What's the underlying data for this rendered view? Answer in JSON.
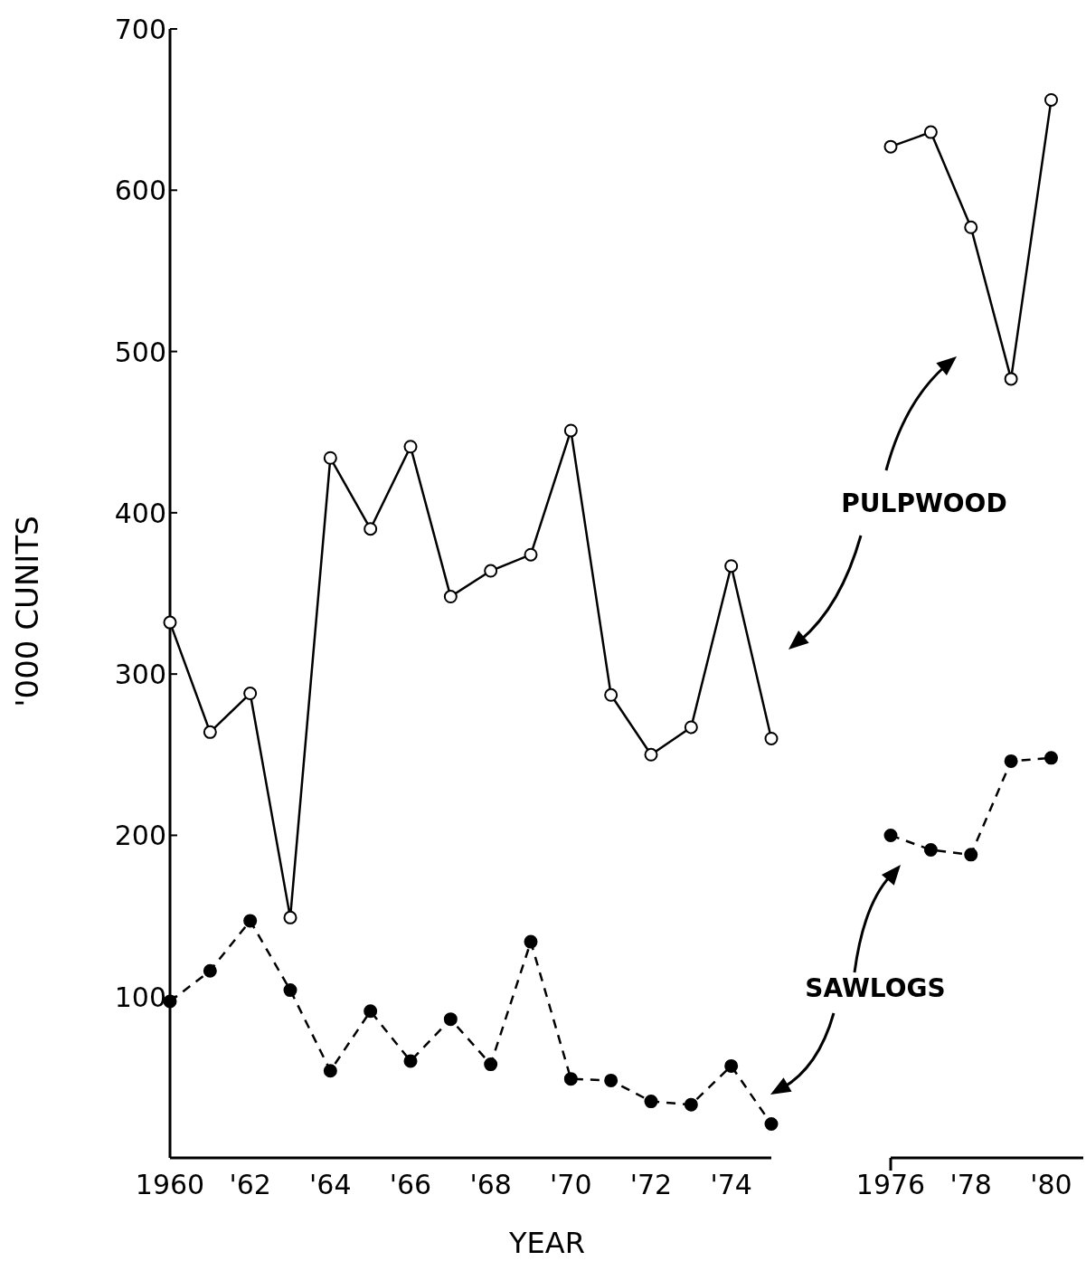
{
  "chart_data": [
    {
      "type": "line",
      "xlabel": "YEAR",
      "ylabel": "'000 CUNITS",
      "x": [
        1960,
        1961,
        1962,
        1963,
        1964,
        1965,
        1966,
        1967,
        1968,
        1969,
        1970,
        1971,
        1972,
        1973,
        1974,
        1975
      ],
      "xlim": [
        1960,
        1975
      ],
      "xticks": [
        {
          "value": 1960,
          "label": "1960"
        },
        {
          "value": 1962,
          "label": "'62"
        },
        {
          "value": 1964,
          "label": "'64"
        },
        {
          "value": 1966,
          "label": "'66"
        },
        {
          "value": 1968,
          "label": "'68"
        },
        {
          "value": 1970,
          "label": "'70"
        },
        {
          "value": 1972,
          "label": "'72"
        },
        {
          "value": 1974,
          "label": "'74"
        }
      ],
      "ylim": [
        0,
        700
      ],
      "yticks": [
        100,
        200,
        300,
        400,
        500,
        600,
        700
      ],
      "grid": false,
      "series": [
        {
          "name": "PULPWOOD",
          "color": "#000000",
          "marker": "circle",
          "line_style": "solid",
          "values": [
            332,
            264,
            288,
            149,
            434,
            390,
            441,
            348,
            364,
            374,
            451,
            287,
            250,
            267,
            367,
            260
          ]
        },
        {
          "name": "SAWLOGS",
          "color": "#000000",
          "marker": "circle",
          "line_style": "dashed",
          "values": [
            97,
            116,
            147,
            104,
            54,
            91,
            60,
            86,
            58,
            134,
            49,
            48,
            35,
            33,
            57,
            21
          ]
        }
      ]
    },
    {
      "type": "line",
      "x": [
        1976,
        1977,
        1978,
        1979,
        1980
      ],
      "xlim": [
        1976,
        1980.8
      ],
      "xticks": [
        {
          "value": 1976,
          "label": "1976"
        },
        {
          "value": 1978,
          "label": "'78"
        },
        {
          "value": 1980,
          "label": "'80"
        }
      ],
      "ylim": [
        0,
        700
      ],
      "tick_labels": "x",
      "grid": false,
      "series": [
        {
          "color": "#000000",
          "marker": "circle",
          "line_style": "solid",
          "values": [
            627,
            636,
            577,
            483,
            656
          ]
        },
        {
          "color": "#000000",
          "marker": "circle",
          "line_style": "dashed",
          "values": [
            200,
            191,
            188,
            246,
            248
          ]
        }
      ]
    }
  ]
}
